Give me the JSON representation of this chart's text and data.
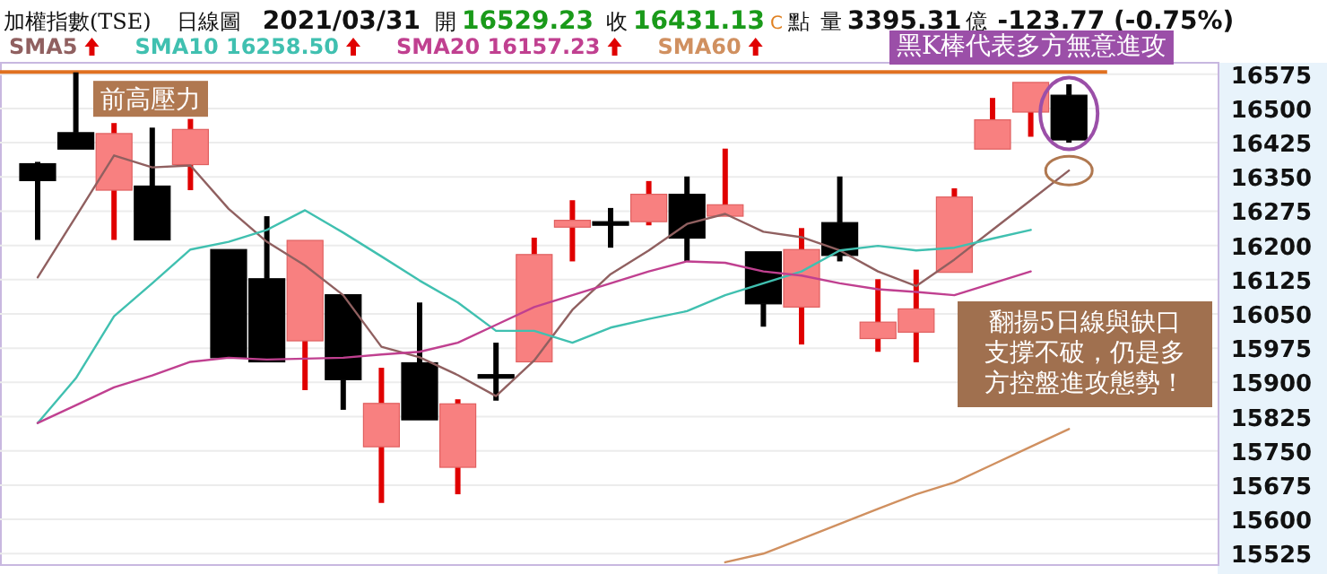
{
  "chart_data": {
    "type": "candlestick",
    "title": "加權指數(TSE)",
    "subtitle": "日線圖",
    "annotations": [
      "2021/03/31",
      "開",
      "16529.23",
      "收",
      "16431.13",
      "C",
      "點",
      "量",
      "3395.31",
      "億",
      "-123.77 (-0.75%)",
      "黑K棒代表多方無意進攻",
      "翻揚5日線與缺口支撐不破，仍是多方控盤進攻態勢！"
    ],
    "categories": [
      null,
      null,
      null,
      null,
      null,
      null,
      null,
      null,
      null,
      null,
      null,
      null,
      null,
      null,
      null,
      null,
      null,
      null,
      null,
      null,
      null,
      null,
      null,
      null,
      null,
      null,
      null,
      null
    ],
    "ohlc": [
      [
        16379,
        16383,
        16212,
        16342
      ],
      [
        16447,
        16579,
        16411,
        16411
      ],
      [
        16321,
        16468,
        16212,
        16445
      ],
      [
        16330,
        16458,
        16212,
        16212
      ],
      [
        16377,
        16477,
        16321,
        16454
      ],
      [
        16191,
        16191,
        15954,
        15954
      ],
      [
        16127,
        16264,
        15945,
        15945
      ],
      [
        15991,
        16211,
        15883,
        16211
      ],
      [
        16092,
        16092,
        15840,
        15906
      ],
      [
        15759,
        15932,
        15636,
        15854
      ],
      [
        15943,
        16075,
        15818,
        15818
      ],
      [
        15714,
        15863,
        15655,
        15853
      ],
      [
        15917,
        15987,
        15860,
        15913
      ],
      [
        15945,
        16217,
        15945,
        16180
      ],
      [
        16240,
        16299,
        16165,
        16255
      ],
      [
        16252,
        16282,
        16195,
        16248
      ],
      [
        16252,
        16341,
        16244,
        16312
      ],
      [
        16312,
        16351,
        16165,
        16216
      ],
      [
        16264,
        16412,
        16264,
        16289
      ],
      [
        16186,
        16186,
        16022,
        16072
      ],
      [
        16065,
        16238,
        15983,
        16191
      ],
      [
        16250,
        16351,
        16165,
        16178
      ],
      [
        15996,
        16126,
        15967,
        16032
      ],
      [
        16010,
        16147,
        15944,
        16061
      ],
      [
        16141,
        16325,
        16141,
        16306
      ],
      [
        16411,
        16523,
        16411,
        16475
      ],
      [
        16492,
        16557,
        16438,
        16557
      ],
      [
        16529,
        16553,
        16425,
        16431
      ]
    ],
    "series": [
      {
        "name": "SMA5",
        "type": "line",
        "color": "#906060",
        "values": [
          16130,
          16263,
          16397,
          16371,
          16375,
          16280,
          16208,
          16156,
          16091,
          15978,
          15955,
          15916,
          15870,
          15948,
          16059,
          16137,
          16189,
          16247,
          16269,
          16230,
          16218,
          16189,
          16143,
          16111,
          16169,
          16234,
          16299,
          16364
        ]
      },
      {
        "name": "SMA10 16258.50",
        "type": "line",
        "color": "#40c0b0",
        "values": [
          15811,
          15909,
          16045,
          16117,
          16191,
          16208,
          16234,
          16277,
          16228,
          16176,
          16123,
          16075,
          16013,
          16013,
          15987,
          16020,
          16039,
          16056,
          16091,
          16117,
          16143,
          16189,
          16199,
          16189,
          16195,
          16215,
          16234,
          null
        ]
      },
      {
        "name": "SMA20 16157.23",
        "type": "line",
        "color": "#c04090",
        "values": [
          15811,
          15850,
          15889,
          15915,
          15945,
          15954,
          15950,
          15952,
          15954,
          15961,
          15967,
          15987,
          16026,
          16065,
          16091,
          16117,
          16143,
          16165,
          16162,
          16143,
          16134,
          16117,
          16104,
          16098,
          16091,
          16117,
          16143,
          null
        ]
      },
      {
        "name": "SMA60",
        "type": "line",
        "color": "#d09060",
        "values": [
          null,
          null,
          null,
          null,
          null,
          null,
          null,
          null,
          null,
          null,
          null,
          null,
          null,
          null,
          null,
          null,
          null,
          null,
          15506,
          15525,
          15557,
          15590,
          15623,
          15655,
          15681,
          15720,
          15759,
          15798
        ]
      }
    ],
    "ylim": [
      15500,
      16600
    ],
    "yticks": [
      15525,
      15600,
      15675,
      15750,
      15825,
      15900,
      15975,
      16050,
      16125,
      16200,
      16275,
      16350,
      16425,
      16500,
      16575
    ],
    "ref_lines": [
      {
        "axis": "y",
        "value": 16580,
        "label": "前高壓力",
        "color": "#e07020"
      }
    ],
    "grid": "y",
    "legend": "top",
    "tick_labels": "y"
  }
}
